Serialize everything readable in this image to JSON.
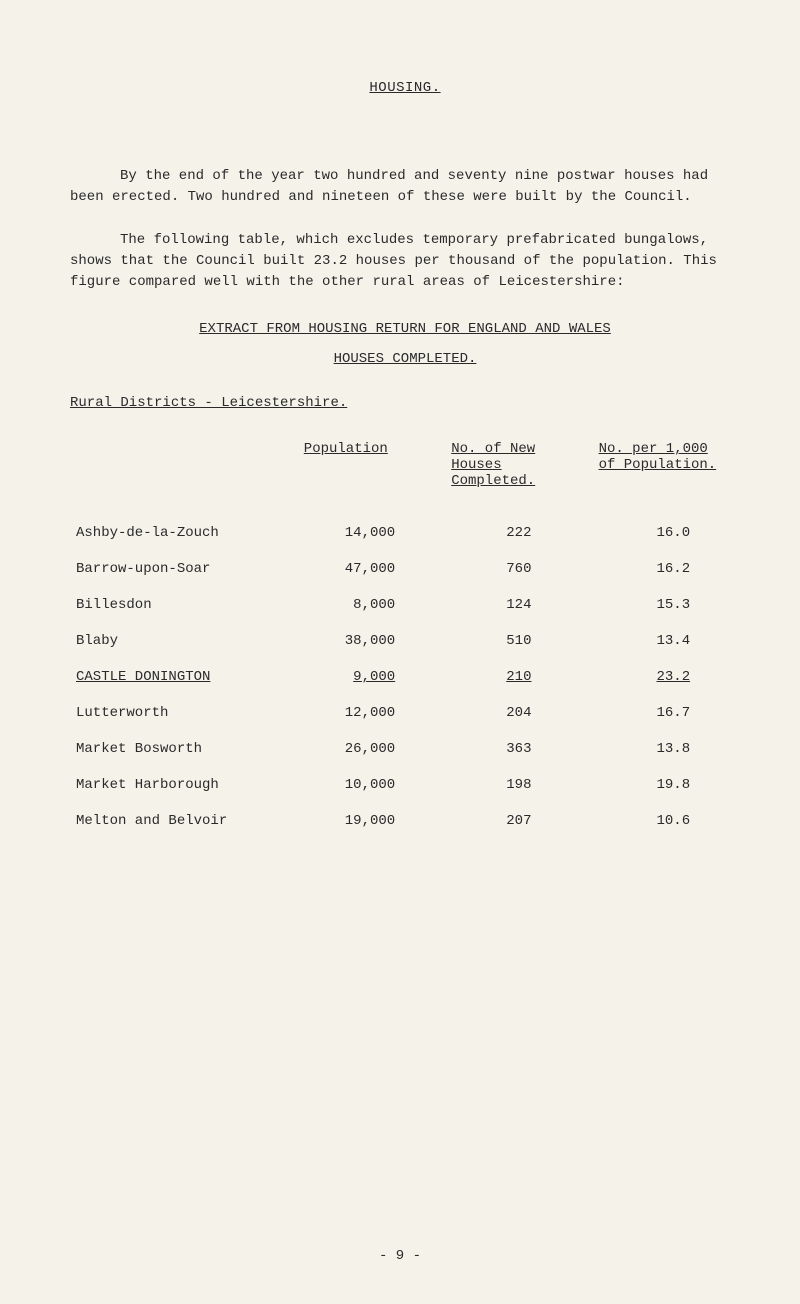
{
  "page_title": "HOUSING.",
  "paragraph1": "By the end of the year two hundred and seventy nine postwar houses had been erected. Two hundred and nineteen of these were built by the Council.",
  "paragraph2": "The following table, which excludes temporary prefabricated bungalows, shows that the Council built 23.2 houses per thousand of the population. This figure compared well with the other rural areas of Leicestershire:",
  "section_heading": "EXTRACT FROM HOUSING RETURN FOR ENGLAND AND WALES",
  "sub_heading": "HOUSES COMPLETED.",
  "region_heading": "Rural Districts - Leicestershire.",
  "table": {
    "headers": {
      "population": "Population",
      "houses_line1": "No. of New",
      "houses_line2": "Houses",
      "houses_line3": "Completed.",
      "rate_line1": "No. per 1,000",
      "rate_line2": "of Population."
    },
    "rows": [
      {
        "district": "Ashby-de-la-Zouch",
        "population": "14,000",
        "houses": "222",
        "rate": "16.0",
        "highlighted": false
      },
      {
        "district": "Barrow-upon-Soar",
        "population": "47,000",
        "houses": "760",
        "rate": "16.2",
        "highlighted": false
      },
      {
        "district": "Billesdon",
        "population": "8,000",
        "houses": "124",
        "rate": "15.3",
        "highlighted": false
      },
      {
        "district": "Blaby",
        "population": "38,000",
        "houses": "510",
        "rate": "13.4",
        "highlighted": false
      },
      {
        "district": "CASTLE DONINGTON",
        "population": "9,000",
        "houses": "210",
        "rate": "23.2",
        "highlighted": true
      },
      {
        "district": "Lutterworth",
        "population": "12,000",
        "houses": "204",
        "rate": "16.7",
        "highlighted": false
      },
      {
        "district": "Market Bosworth",
        "population": "26,000",
        "houses": "363",
        "rate": "13.8",
        "highlighted": false
      },
      {
        "district": "Market Harborough",
        "population": "10,000",
        "houses": "198",
        "rate": "19.8",
        "highlighted": false
      },
      {
        "district": "Melton and Belvoir",
        "population": "19,000",
        "houses": "207",
        "rate": "10.6",
        "highlighted": false
      }
    ]
  },
  "page_number": "- 9 -"
}
